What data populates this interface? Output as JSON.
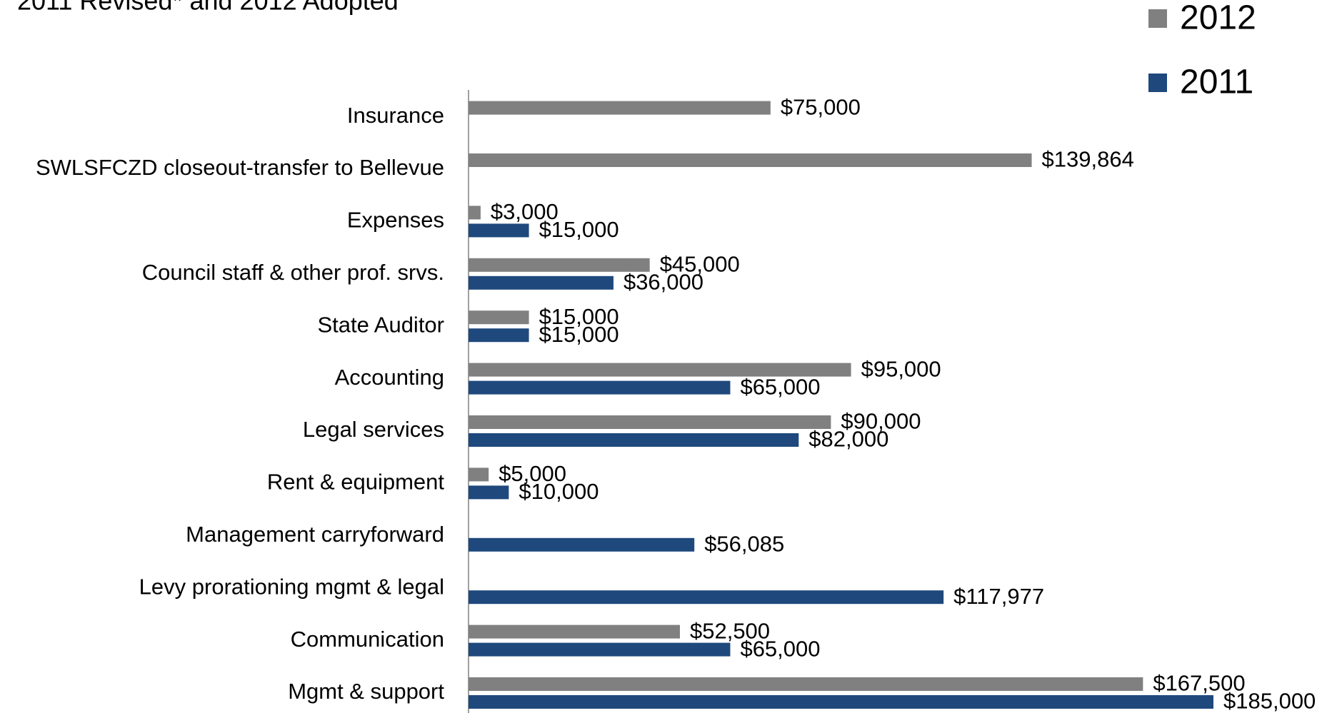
{
  "chart_data": {
    "type": "hbar",
    "title": "2011 Revised* and 2012 Adopted",
    "categories": [
      "Insurance",
      "SWLSFCZD closeout-transfer to Bellevue",
      "Expenses",
      "Council staff & other prof. srvs.",
      "State Auditor",
      "Accounting",
      "Legal services",
      "Rent & equipment",
      "Management carryforward",
      "Levy prorationing mgmt & legal",
      "Communication",
      "Mgmt & support"
    ],
    "series": [
      {
        "name": "2012",
        "color": "#808080",
        "values": [
          75000,
          139864,
          3000,
          45000,
          15000,
          95000,
          90000,
          5000,
          null,
          null,
          52500,
          167500
        ],
        "value_labels": [
          "$75,000",
          "$139,864",
          "$3,000",
          "$45,000",
          "$15,000",
          "$95,000",
          "$90,000",
          "$5,000",
          null,
          null,
          "$52,500",
          "$167,500"
        ]
      },
      {
        "name": "2011",
        "color": "#1f497d",
        "values": [
          null,
          null,
          15000,
          36000,
          15000,
          65000,
          82000,
          10000,
          56085,
          117977,
          65000,
          185000
        ],
        "value_labels": [
          null,
          null,
          "$15,000",
          "$36,000",
          "$15,000",
          "$65,000",
          "$82,000",
          "$10,000",
          "$56,085",
          "$117,977",
          "$65,000",
          "$185,000"
        ]
      }
    ]
  }
}
